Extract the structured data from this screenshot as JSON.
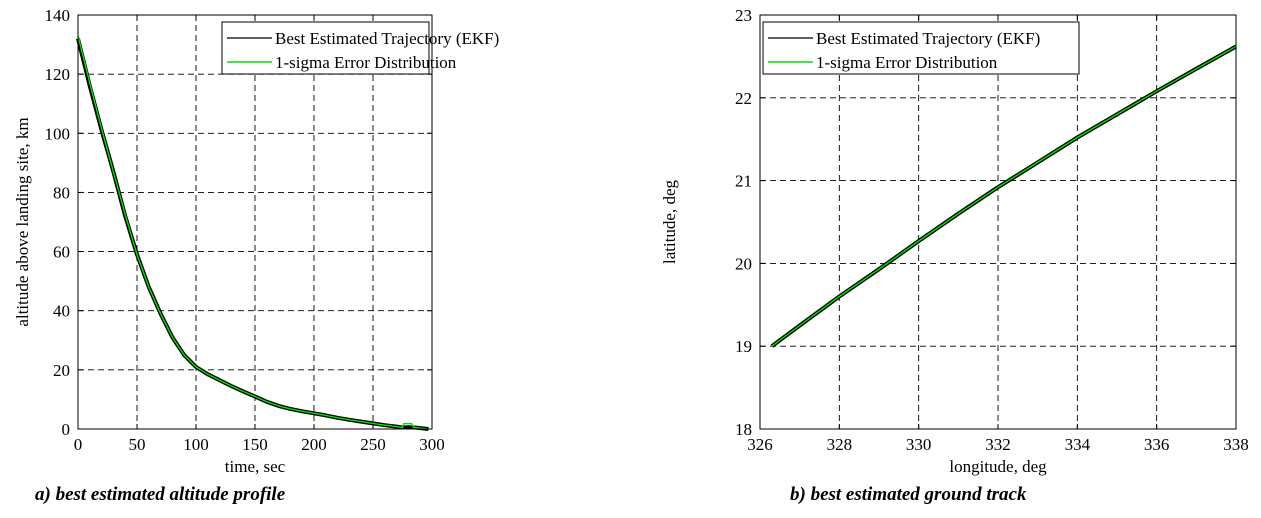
{
  "chart_data": [
    {
      "type": "line",
      "caption": "a) best estimated altitude profile",
      "xlabel": "time, sec",
      "ylabel": "altitude above landing site, km",
      "xlim": [
        0,
        300
      ],
      "ylim": [
        0,
        140
      ],
      "xticks": [
        0,
        50,
        100,
        150,
        200,
        250,
        300
      ],
      "yticks": [
        0,
        20,
        40,
        60,
        80,
        100,
        120,
        140
      ],
      "grid": true,
      "legend_position": "top-right",
      "series": [
        {
          "name": "Best Estimated Trajectory (EKF)",
          "color": "#000000",
          "x": [
            0,
            5,
            10,
            20,
            30,
            40,
            50,
            60,
            70,
            80,
            90,
            100,
            110,
            120,
            130,
            140,
            150,
            160,
            170,
            180,
            190,
            200,
            210,
            220,
            230,
            240,
            250,
            260,
            270,
            275,
            280,
            285,
            290,
            295,
            297
          ],
          "y": [
            132,
            124,
            116,
            101,
            87,
            72,
            59,
            48,
            39,
            31,
            25,
            21,
            18.5,
            16.5,
            14.5,
            12.7,
            11,
            9.2,
            7.8,
            6.8,
            6,
            5.3,
            4.6,
            3.8,
            3.1,
            2.5,
            1.9,
            1.3,
            0.8,
            0.5,
            0.6,
            0.5,
            0.3,
            0.1,
            0
          ]
        },
        {
          "name": "1-sigma Error Distribution",
          "color": "#00e000",
          "x": [
            0,
            5,
            10,
            20,
            30,
            40,
            50,
            60,
            70,
            80,
            90,
            100,
            110,
            120,
            130,
            140,
            150,
            160,
            170,
            180,
            190,
            200,
            210,
            220,
            230,
            240,
            250,
            260,
            270,
            275,
            276,
            280,
            283,
            284,
            290,
            295,
            297
          ],
          "y": [
            133,
            125,
            117,
            101.5,
            87,
            72.5,
            59,
            48,
            39,
            31,
            25,
            21,
            18.5,
            16.5,
            14.5,
            12.7,
            11,
            9.2,
            7.8,
            6.8,
            6,
            5.3,
            4.6,
            3.8,
            3.1,
            2.5,
            1.9,
            1.3,
            0.8,
            0.5,
            1.8,
            1.8,
            1.8,
            0.6,
            0.3,
            0.1,
            0
          ]
        }
      ]
    },
    {
      "type": "line",
      "caption": "b) best estimated ground track",
      "xlabel": "longitude, deg",
      "ylabel": "latitude, deg",
      "xlim": [
        326,
        338
      ],
      "ylim": [
        18,
        23
      ],
      "xticks": [
        326,
        328,
        330,
        332,
        334,
        336,
        338
      ],
      "yticks": [
        18,
        19,
        20,
        21,
        22,
        23
      ],
      "grid": true,
      "legend_position": "top-left",
      "series": [
        {
          "name": "Best Estimated Trajectory (EKF)",
          "color": "#000000",
          "x": [
            326.3,
            327,
            328,
            329,
            330,
            331,
            332,
            333,
            334,
            335,
            336,
            337,
            338
          ],
          "y": [
            19.0,
            19.25,
            19.6,
            19.93,
            20.27,
            20.6,
            20.92,
            21.22,
            21.52,
            21.8,
            22.08,
            22.35,
            22.62
          ]
        },
        {
          "name": "1-sigma Error Distribution",
          "color": "#00e000",
          "x": [
            326.3,
            327,
            328,
            329,
            330,
            331,
            332,
            333,
            334,
            335,
            336,
            337,
            338
          ],
          "y": [
            19.0,
            19.25,
            19.6,
            19.93,
            20.27,
            20.6,
            20.92,
            21.22,
            21.52,
            21.8,
            22.08,
            22.35,
            22.62
          ]
        }
      ]
    }
  ]
}
